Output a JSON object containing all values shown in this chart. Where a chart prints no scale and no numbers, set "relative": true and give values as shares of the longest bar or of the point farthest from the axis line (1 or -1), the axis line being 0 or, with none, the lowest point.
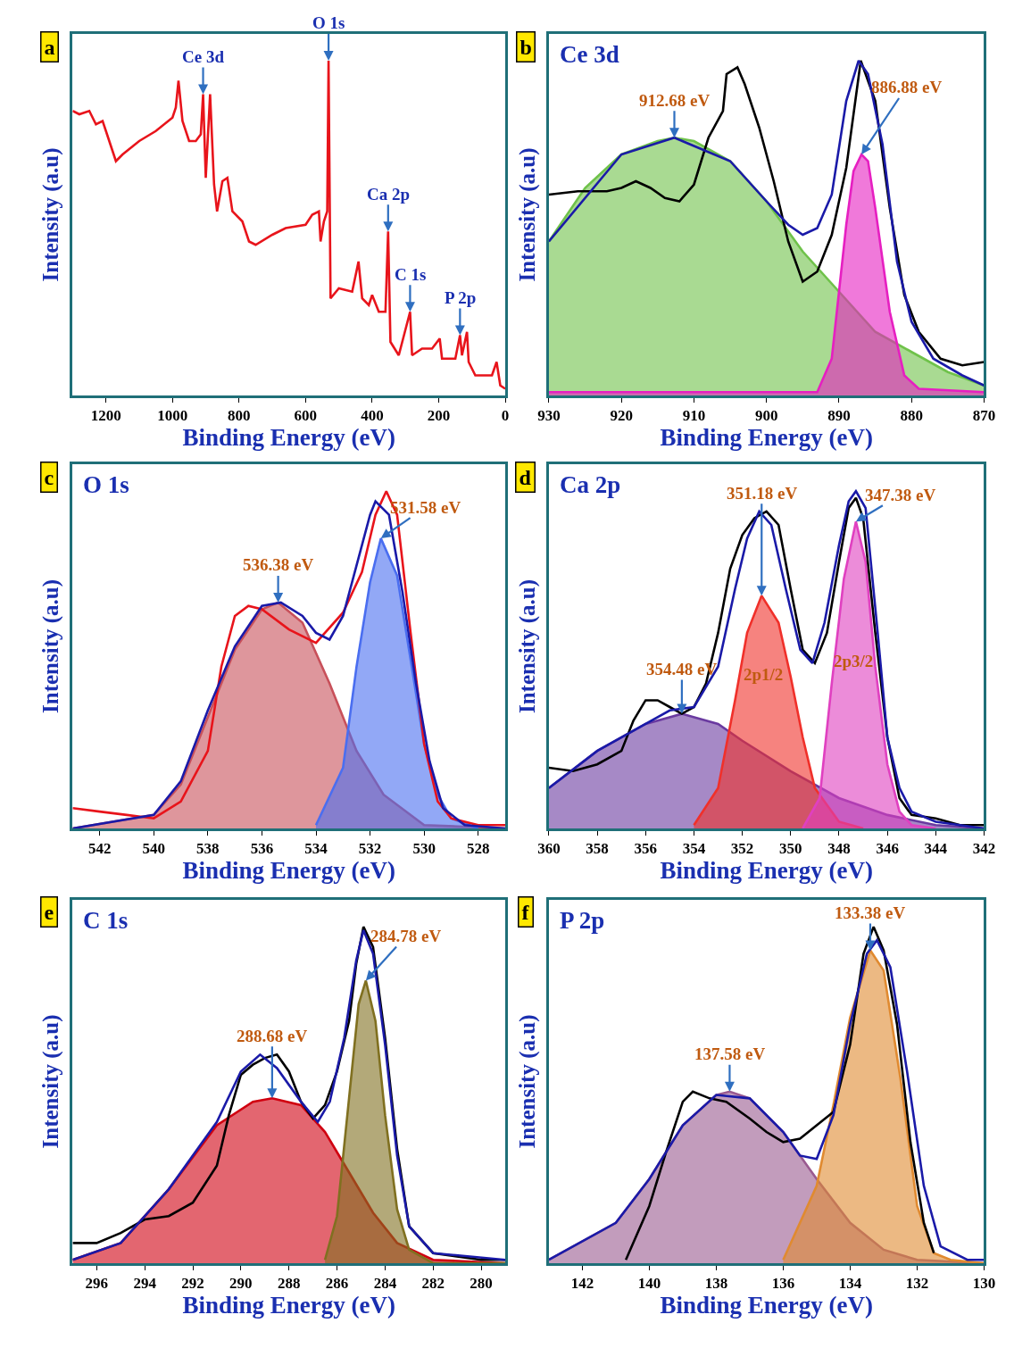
{
  "chart_data": [
    {
      "type": "line",
      "relative": true,
      "xlabel": "Binding Energy (eV)",
      "ylabel": "Intensity (a.u)",
      "xlim": [
        1300,
        0
      ],
      "xticks": [
        1200,
        1000,
        800,
        600,
        400,
        200,
        0
      ],
      "annotations": [
        "a",
        {
          "text": "Ce 3d",
          "x": 908,
          "y": 0.9
        },
        {
          "text": "O 1s",
          "x": 531,
          "y": 1.0
        },
        {
          "text": "Ca 2p",
          "x": 352,
          "y": 0.49
        },
        {
          "text": "C 1s",
          "x": 286,
          "y": 0.25
        },
        {
          "text": "P 2p",
          "x": 136,
          "y": 0.18
        }
      ],
      "series": [
        {
          "color": "#e8141b",
          "x": [
            1300,
            1280,
            1250,
            1230,
            1210,
            1200,
            1180,
            1170,
            1150,
            1100,
            1050,
            1000,
            990,
            982,
            970,
            950,
            930,
            915,
            908,
            900,
            887,
            875,
            866,
            850,
            835,
            820,
            790,
            770,
            750,
            700,
            660,
            600,
            580,
            560,
            555,
            545,
            535,
            531,
            525,
            500,
            460,
            441,
            430,
            410,
            400,
            380,
            360,
            352,
            345,
            320,
            286,
            280,
            250,
            220,
            197,
            190,
            150,
            136,
            130,
            115,
            110,
            90,
            40,
            26,
            15,
            0
          ],
          "values": [
            0.85,
            0.84,
            0.85,
            0.81,
            0.82,
            0.79,
            0.73,
            0.7,
            0.72,
            0.76,
            0.79,
            0.83,
            0.86,
            0.94,
            0.82,
            0.76,
            0.76,
            0.78,
            0.9,
            0.65,
            0.9,
            0.63,
            0.55,
            0.64,
            0.65,
            0.55,
            0.52,
            0.46,
            0.45,
            0.48,
            0.5,
            0.51,
            0.54,
            0.55,
            0.46,
            0.52,
            0.55,
            1.0,
            0.29,
            0.32,
            0.31,
            0.4,
            0.29,
            0.27,
            0.3,
            0.25,
            0.25,
            0.49,
            0.16,
            0.12,
            0.25,
            0.12,
            0.14,
            0.14,
            0.17,
            0.11,
            0.11,
            0.18,
            0.12,
            0.19,
            0.1,
            0.06,
            0.06,
            0.1,
            0.03,
            0.02
          ]
        }
      ]
    },
    {
      "type": "line",
      "relative": true,
      "title": "Ce 3d",
      "xlabel": "Binding Energy (eV)",
      "ylabel": "Intensity (a.u)",
      "xlim": [
        930,
        870
      ],
      "xticks": [
        930,
        920,
        910,
        900,
        890,
        880,
        870
      ],
      "annotations": [
        "b",
        {
          "text": "912.68 eV",
          "x": 912.7,
          "y": 0.77
        },
        {
          "text": "886.88 eV",
          "x": 886.9,
          "y": 0.72
        }
      ],
      "series": [
        {
          "type": "area",
          "color": "#6fc24a",
          "x": [
            930,
            925,
            920,
            915,
            912.7,
            910,
            905,
            900,
            895,
            890,
            885,
            880,
            875,
            870
          ],
          "values": [
            0.46,
            0.62,
            0.72,
            0.76,
            0.77,
            0.76,
            0.7,
            0.58,
            0.43,
            0.31,
            0.19,
            0.13,
            0.07,
            0.03
          ]
        },
        {
          "type": "area",
          "color": "#e61fc1",
          "x": [
            930,
            893,
            891,
            889,
            888,
            886.9,
            886,
            885,
            883,
            881,
            879,
            870
          ],
          "values": [
            0.01,
            0.01,
            0.11,
            0.51,
            0.67,
            0.72,
            0.7,
            0.56,
            0.25,
            0.06,
            0.02,
            0.01
          ]
        },
        {
          "color": "#000000",
          "x": [
            930,
            926,
            922,
            920,
            918,
            916,
            914,
            912,
            910,
            908,
            906,
            905.5,
            904,
            903,
            901,
            899,
            897,
            895,
            893,
            891,
            889,
            887,
            885,
            883,
            881,
            879,
            876,
            873,
            870
          ],
          "values": [
            0.6,
            0.61,
            0.61,
            0.62,
            0.64,
            0.62,
            0.59,
            0.58,
            0.63,
            0.77,
            0.85,
            0.96,
            0.98,
            0.93,
            0.8,
            0.64,
            0.46,
            0.34,
            0.37,
            0.48,
            0.68,
            1.0,
            0.88,
            0.56,
            0.3,
            0.19,
            0.11,
            0.09,
            0.1
          ]
        },
        {
          "color": "#1a1aa8",
          "x": [
            930,
            920,
            912.7,
            905,
            900,
            897,
            895,
            893,
            891,
            889,
            887.3,
            886,
            884,
            882,
            880,
            877,
            873,
            870
          ],
          "values": [
            0.46,
            0.72,
            0.77,
            0.7,
            0.58,
            0.51,
            0.48,
            0.5,
            0.6,
            0.88,
            1.0,
            0.96,
            0.75,
            0.4,
            0.22,
            0.11,
            0.06,
            0.03
          ]
        }
      ]
    },
    {
      "type": "line",
      "relative": true,
      "title": "O 1s",
      "xlabel": "Binding Energy (eV)",
      "ylabel": "Intensity (a.u)",
      "xlim": [
        543,
        527
      ],
      "xticks": [
        542,
        540,
        538,
        536,
        534,
        532,
        530,
        528
      ],
      "annotations": [
        "c",
        {
          "text": "536.38 eV",
          "x": 535.4,
          "y": 0.67
        },
        {
          "text": "531.58 eV",
          "x": 531.6,
          "y": 0.86
        }
      ],
      "series": [
        {
          "type": "area",
          "color": "#c8505a",
          "x": [
            543,
            540,
            539,
            538,
            537,
            536,
            535.4,
            534.5,
            533.5,
            532.5,
            531.5,
            530,
            527
          ],
          "values": [
            0,
            0.04,
            0.13,
            0.33,
            0.53,
            0.65,
            0.67,
            0.61,
            0.43,
            0.23,
            0.1,
            0.01,
            0
          ]
        },
        {
          "type": "area",
          "color": "#4a6ef0",
          "x": [
            534,
            533,
            532.5,
            532,
            531.6,
            531,
            530.5,
            530,
            529.5,
            529,
            528
          ],
          "values": [
            0.01,
            0.18,
            0.48,
            0.73,
            0.86,
            0.75,
            0.5,
            0.25,
            0.1,
            0.03,
            0
          ]
        },
        {
          "color": "#e8141b",
          "x": [
            543,
            542,
            541,
            540,
            539,
            538,
            537.5,
            537,
            536.5,
            536,
            535,
            534,
            533,
            532.3,
            531.8,
            531.4,
            531,
            530.5,
            530,
            529.5,
            529,
            528,
            527
          ],
          "values": [
            0.06,
            0.05,
            0.04,
            0.03,
            0.08,
            0.23,
            0.48,
            0.63,
            0.66,
            0.65,
            0.59,
            0.55,
            0.64,
            0.76,
            0.93,
            1.0,
            0.93,
            0.58,
            0.25,
            0.08,
            0.03,
            0.01,
            0.01
          ]
        },
        {
          "color": "#1a1aa8",
          "x": [
            543,
            540,
            539,
            538,
            537,
            536,
            535.3,
            534.5,
            534,
            533.5,
            533,
            532.5,
            532,
            531.8,
            531.3,
            530.8,
            530.3,
            529.8,
            529.3,
            528.5,
            527
          ],
          "values": [
            0,
            0.04,
            0.14,
            0.35,
            0.54,
            0.66,
            0.67,
            0.63,
            0.58,
            0.56,
            0.63,
            0.78,
            0.93,
            0.97,
            0.93,
            0.7,
            0.43,
            0.2,
            0.06,
            0.01,
            0
          ]
        }
      ]
    },
    {
      "type": "line",
      "relative": true,
      "title": "Ca 2p",
      "xlabel": "Binding Energy (eV)",
      "ylabel": "Intensity (a.u)",
      "xlim": [
        360,
        342
      ],
      "xticks": [
        360,
        358,
        356,
        354,
        352,
        350,
        348,
        346,
        344,
        342
      ],
      "annotations": [
        "d",
        {
          "text": "354.48 eV",
          "x": 354.5,
          "y": 0.34
        },
        {
          "text": "351.18 eV",
          "x": 351.2,
          "y": 0.69
        },
        {
          "text": "347.38 eV",
          "x": 347.3,
          "y": 0.91
        },
        "2p1/2",
        "2p3/2"
      ],
      "series": [
        {
          "type": "area",
          "color": "#6a3aa0",
          "x": [
            360,
            358,
            356,
            354.5,
            353,
            352,
            350,
            348,
            346,
            344,
            342
          ],
          "values": [
            0.12,
            0.23,
            0.31,
            0.34,
            0.31,
            0.26,
            0.17,
            0.09,
            0.04,
            0.01,
            0
          ]
        },
        {
          "type": "area",
          "color": "#f0302a",
          "x": [
            354,
            353,
            352.3,
            351.8,
            351.2,
            350.5,
            350,
            349.5,
            349,
            348,
            347
          ],
          "values": [
            0.01,
            0.12,
            0.38,
            0.58,
            0.69,
            0.61,
            0.45,
            0.27,
            0.12,
            0.02,
            0
          ]
        },
        {
          "type": "area",
          "color": "#e040c0",
          "x": [
            349.5,
            348.8,
            348.3,
            347.8,
            347.3,
            346.9,
            346.5,
            346,
            345.5,
            345,
            344
          ],
          "values": [
            0,
            0.09,
            0.43,
            0.74,
            0.91,
            0.79,
            0.48,
            0.19,
            0.05,
            0.01,
            0
          ]
        },
        {
          "color": "#000000",
          "x": [
            360,
            359,
            358,
            357,
            356.5,
            356,
            355.5,
            355,
            354.5,
            354,
            353.5,
            353,
            352.5,
            352,
            351.5,
            351,
            350.5,
            350,
            349.5,
            349,
            348.5,
            348,
            347.6,
            347.3,
            347,
            346.5,
            346,
            345.5,
            345,
            344,
            343,
            342
          ],
          "values": [
            0.18,
            0.17,
            0.19,
            0.23,
            0.32,
            0.38,
            0.38,
            0.36,
            0.34,
            0.36,
            0.43,
            0.58,
            0.77,
            0.87,
            0.92,
            0.94,
            0.9,
            0.71,
            0.53,
            0.49,
            0.58,
            0.79,
            0.95,
            0.98,
            0.92,
            0.58,
            0.27,
            0.09,
            0.04,
            0.03,
            0.01,
            0.01
          ]
        },
        {
          "color": "#1a1aa8",
          "x": [
            360,
            358,
            356,
            355,
            354,
            353,
            352.3,
            351.8,
            351.3,
            350.8,
            350.2,
            349.6,
            349.1,
            348.6,
            348,
            347.6,
            347.3,
            346.9,
            346.4,
            346,
            345.5,
            345,
            344,
            342
          ],
          "values": [
            0.12,
            0.23,
            0.31,
            0.35,
            0.36,
            0.48,
            0.71,
            0.86,
            0.94,
            0.9,
            0.71,
            0.53,
            0.49,
            0.61,
            0.84,
            0.97,
            1.0,
            0.95,
            0.58,
            0.27,
            0.12,
            0.05,
            0.02,
            0
          ]
        }
      ]
    },
    {
      "type": "line",
      "relative": true,
      "title": "C 1s",
      "xlabel": "Binding Energy (eV)",
      "ylabel": "Intensity (a.u)",
      "xlim": [
        297,
        279
      ],
      "xticks": [
        296,
        294,
        292,
        290,
        288,
        286,
        284,
        282,
        280
      ],
      "annotations": [
        "e",
        {
          "text": "288.68 eV",
          "x": 288.7,
          "y": 0.49
        },
        {
          "text": "284.78 eV",
          "x": 284.8,
          "y": 0.84
        }
      ],
      "series": [
        {
          "type": "area",
          "color": "#d00010",
          "x": [
            297,
            295,
            293,
            291,
            289.5,
            288.7,
            287.5,
            286.5,
            285.5,
            284.5,
            283.5,
            282,
            279
          ],
          "values": [
            0.01,
            0.06,
            0.22,
            0.41,
            0.48,
            0.49,
            0.47,
            0.39,
            0.27,
            0.15,
            0.06,
            0.01,
            0
          ]
        },
        {
          "type": "area",
          "color": "#807020",
          "x": [
            286.5,
            286,
            285.5,
            285.1,
            284.8,
            284.4,
            284,
            283.5,
            283,
            282,
            279
          ],
          "values": [
            0.01,
            0.14,
            0.49,
            0.77,
            0.84,
            0.72,
            0.44,
            0.16,
            0.04,
            0,
            0
          ]
        },
        {
          "color": "#000000",
          "x": [
            297,
            296,
            295,
            294,
            293,
            292,
            291,
            290.5,
            290,
            289.5,
            289,
            288.5,
            288,
            287.5,
            287,
            286.5,
            286,
            285.5,
            285.2,
            284.9,
            284.5,
            284,
            283.5,
            283,
            282,
            280,
            279
          ],
          "values": [
            0.06,
            0.06,
            0.09,
            0.13,
            0.14,
            0.18,
            0.29,
            0.44,
            0.56,
            0.59,
            0.61,
            0.62,
            0.57,
            0.48,
            0.43,
            0.47,
            0.57,
            0.72,
            0.89,
            1.0,
            0.94,
            0.67,
            0.34,
            0.11,
            0.03,
            0.01,
            0.01
          ]
        },
        {
          "color": "#1a1aa8",
          "x": [
            297,
            295,
            293,
            291,
            290,
            289.2,
            288.5,
            287.5,
            286.8,
            286.3,
            285.7,
            285.2,
            284.9,
            284.5,
            284,
            283.5,
            283,
            282,
            279
          ],
          "values": [
            0.01,
            0.06,
            0.22,
            0.42,
            0.57,
            0.62,
            0.58,
            0.48,
            0.42,
            0.48,
            0.67,
            0.9,
            0.99,
            0.92,
            0.65,
            0.32,
            0.11,
            0.03,
            0.01
          ]
        }
      ]
    },
    {
      "type": "line",
      "relative": true,
      "title": "P 2p",
      "xlabel": "Binding Energy (eV)",
      "ylabel": "Intensity (a.u)",
      "xlim": [
        143,
        130
      ],
      "xticks": [
        142,
        140,
        138,
        136,
        134,
        132,
        130
      ],
      "annotations": [
        "f",
        {
          "text": "137.58 eV",
          "x": 137.6,
          "y": 0.51
        },
        {
          "text": "133.38 eV",
          "x": 133.4,
          "y": 0.93
        }
      ],
      "series": [
        {
          "type": "area",
          "color": "#9a5a90",
          "x": [
            143,
            141,
            140,
            139,
            138,
            137.6,
            137,
            136,
            135,
            134,
            133,
            132,
            130
          ],
          "values": [
            0.01,
            0.12,
            0.25,
            0.41,
            0.5,
            0.51,
            0.49,
            0.39,
            0.25,
            0.12,
            0.04,
            0.01,
            0
          ]
        },
        {
          "type": "area",
          "color": "#e08a30",
          "x": [
            136,
            135,
            134.5,
            134,
            133.4,
            133,
            132.5,
            132,
            131.5,
            131,
            130
          ],
          "values": [
            0.01,
            0.23,
            0.47,
            0.73,
            0.93,
            0.87,
            0.55,
            0.17,
            0.03,
            0.01,
            0
          ]
        },
        {
          "color": "#000000",
          "x": [
            140.7,
            140,
            139.5,
            139,
            138.7,
            138.2,
            137.7,
            137,
            136.5,
            136,
            135.5,
            135,
            134.5,
            134,
            133.6,
            133.3,
            133,
            132.6,
            132.2,
            131.8,
            131.5
          ],
          "values": [
            0.01,
            0.17,
            0.33,
            0.48,
            0.51,
            0.49,
            0.48,
            0.43,
            0.39,
            0.36,
            0.37,
            0.41,
            0.45,
            0.65,
            0.92,
            1.0,
            0.93,
            0.71,
            0.36,
            0.12,
            0.03
          ]
        },
        {
          "color": "#1a1aa8",
          "x": [
            143,
            141,
            140,
            139,
            138,
            137,
            136,
            135.5,
            135,
            134.5,
            134,
            133.5,
            133.2,
            132.8,
            132.3,
            131.8,
            131.3,
            130.5,
            130
          ],
          "values": [
            0.01,
            0.12,
            0.25,
            0.41,
            0.5,
            0.49,
            0.39,
            0.32,
            0.31,
            0.44,
            0.71,
            0.92,
            0.96,
            0.88,
            0.57,
            0.23,
            0.05,
            0.01,
            0.01
          ]
        }
      ]
    }
  ]
}
